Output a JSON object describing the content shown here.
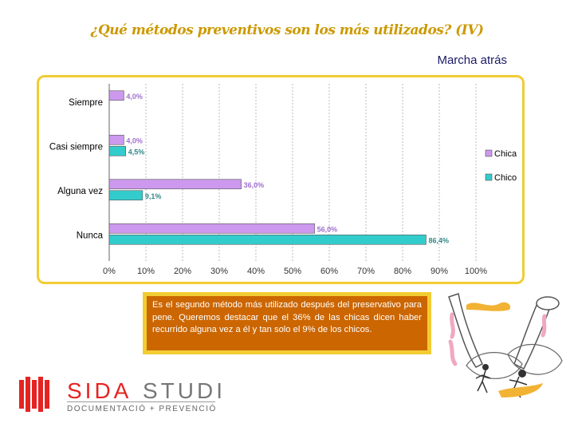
{
  "header": {
    "title": "¿Qué métodos preventivos son los más utilizados? (IV)",
    "subtitle": "Marcha atrás"
  },
  "chart_data": {
    "type": "bar",
    "orientation": "horizontal",
    "categories": [
      "Siempre",
      "Casi siempre",
      "Alguna vez",
      "Nunca"
    ],
    "series": [
      {
        "name": "Chica",
        "color": "#cc99ee",
        "values": [
          4.0,
          4.0,
          36.0,
          56.0
        ],
        "labels": [
          "4,0%",
          "4,0%",
          "36,0%",
          "56,0%"
        ]
      },
      {
        "name": "Chico",
        "color": "#33cccc",
        "values": [
          null,
          4.5,
          9.1,
          86.4
        ],
        "labels": [
          "",
          "4,5%",
          "9,1%",
          "86,4%"
        ]
      }
    ],
    "xlim": [
      0,
      100
    ],
    "xticks": [
      "0%",
      "10%",
      "20%",
      "30%",
      "40%",
      "50%",
      "60%",
      "70%",
      "80%",
      "90%",
      "100%"
    ],
    "grid": true,
    "legend": "right"
  },
  "note": {
    "text": "Es el segundo método más utilizado después del preservativo para pene. Queremos destacar que el 36% de las chicas dicen haber recurrido alguna vez a él y tan solo el 9% de los chicos."
  },
  "logo": {
    "brand_a": "SIDA",
    "brand_b": "STUDI",
    "tagline": "DOCUMENTACIÓ + PREVENCIÓ",
    "color": "#e52421"
  }
}
